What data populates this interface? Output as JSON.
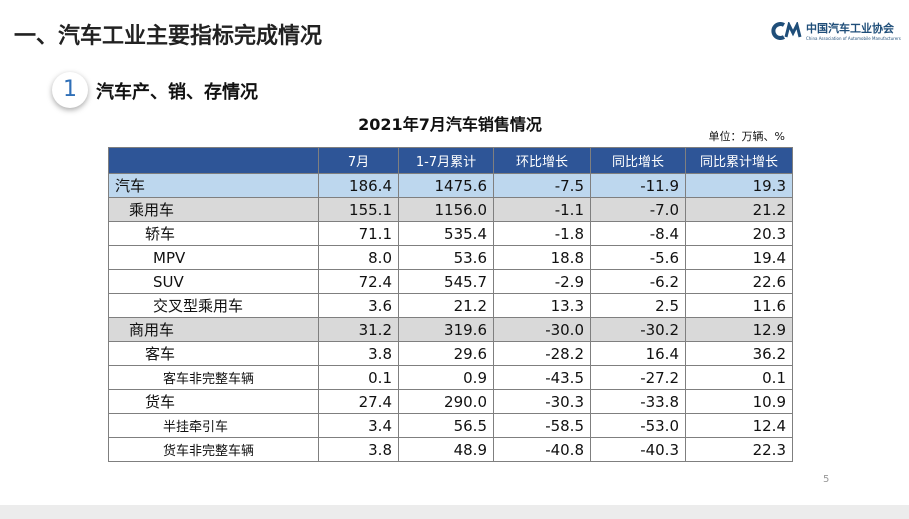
{
  "header": {
    "title": "一、汽车工业主要指标完成情况",
    "logo_name": "中国汽车工业协会",
    "logo_subtitle": "China Association of Automobile Manufacturers"
  },
  "section": {
    "number": "1",
    "title": "汽车产、销、存情况"
  },
  "table": {
    "title": "2021年7月汽车销售情况",
    "unit": "单位：万辆、%",
    "columns": [
      "",
      "7月",
      "1-7月累计",
      "环比增长",
      "同比增长",
      "同比累计增长"
    ],
    "rows": [
      [
        "汽车",
        "186.4",
        "1475.6",
        "-7.5",
        "-11.9",
        "19.3"
      ],
      [
        "乘用车",
        "155.1",
        "1156.0",
        "-1.1",
        "-7.0",
        "21.2"
      ],
      [
        "轿车",
        "71.1",
        "535.4",
        "-1.8",
        "-8.4",
        "20.3"
      ],
      [
        "MPV",
        "8.0",
        "53.6",
        "18.8",
        "-5.6",
        "19.4"
      ],
      [
        "SUV",
        "72.4",
        "545.7",
        "-2.9",
        "-6.2",
        "22.6"
      ],
      [
        "交叉型乘用车",
        "3.6",
        "21.2",
        "13.3",
        "2.5",
        "11.6"
      ],
      [
        "商用车",
        "31.2",
        "319.6",
        "-30.0",
        "-30.2",
        "12.9"
      ],
      [
        "客车",
        "3.8",
        "29.6",
        "-28.2",
        "16.4",
        "36.2"
      ],
      [
        "客车非完整车辆",
        "0.1",
        "0.9",
        "-43.5",
        "-27.2",
        "0.1"
      ],
      [
        "货车",
        "27.4",
        "290.0",
        "-30.3",
        "-33.8",
        "10.9"
      ],
      [
        "半挂牵引车",
        "3.4",
        "56.5",
        "-58.5",
        "-53.0",
        "12.4"
      ],
      [
        "货车非完整车辆",
        "3.8",
        "48.9",
        "-40.8",
        "-40.3",
        "22.3"
      ]
    ]
  },
  "page_number": "5"
}
